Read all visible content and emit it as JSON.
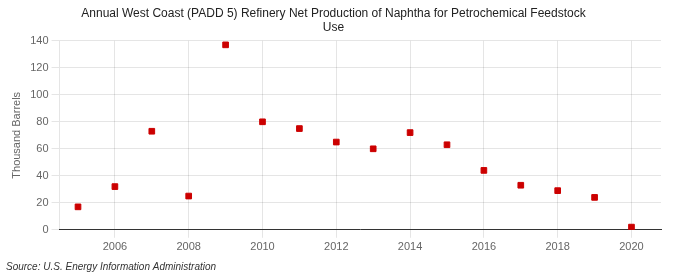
{
  "chart_data": {
    "type": "scatter",
    "title": "Annual West Coast (PADD 5) Refinery Net Production of Naphtha for Petrochemical Feedstock\nUse",
    "ylabel": "Thousand Barrels",
    "annotations": [
      "Source: U.S. Energy Information Administration"
    ],
    "x": [
      2005,
      2006,
      2007,
      2008,
      2009,
      2010,
      2011,
      2012,
      2013,
      2014,
      2015,
      2016,
      2017,
      2018,
      2019,
      2020
    ],
    "values": [
      17,
      32,
      73,
      25,
      137,
      80,
      75,
      65,
      60,
      72,
      63,
      44,
      33,
      29,
      24,
      2
    ],
    "color": "#cc0000",
    "marker": "square",
    "xlim": [
      2004.5,
      2020.8
    ],
    "xticks": [
      2006,
      2008,
      2010,
      2012,
      2014,
      2016,
      2018,
      2020
    ],
    "ylim": [
      0,
      140
    ],
    "yticks": [
      0,
      20,
      40,
      60,
      80,
      100,
      120,
      140
    ],
    "grid": true
  }
}
